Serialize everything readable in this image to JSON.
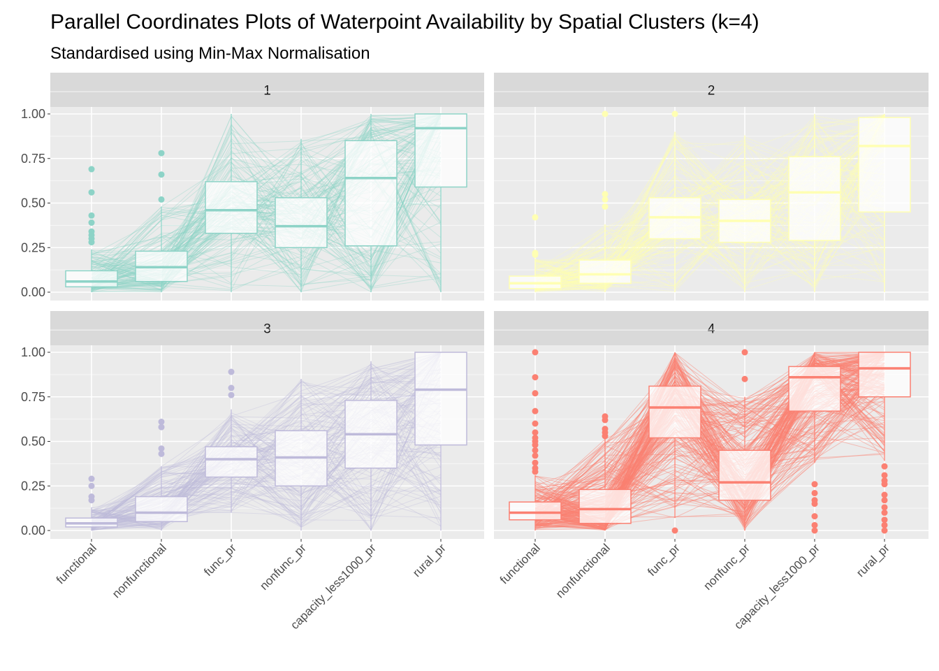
{
  "title": "Parallel Coordinates Plots of Waterpoint Availability by Spatial Clusters (k=4)",
  "subtitle": "Standardised using Min-Max Normalisation",
  "chart_data": {
    "type": "parallel_coordinates_with_boxplots",
    "facet_by": "cluster",
    "variables": [
      "functional",
      "nonfunctional",
      "func_pr",
      "nonfunc_pr",
      "capacity_less1000_pr",
      "rural_pr"
    ],
    "ylim": [
      0,
      1.2
    ],
    "yticks": [
      "0.00",
      "0.25",
      "0.50",
      "0.75",
      "1.00"
    ],
    "ytick_values": [
      0,
      0.25,
      0.5,
      0.75,
      1.0
    ],
    "grid": true,
    "facets": [
      {
        "label": "1",
        "color": "#8DD3C7",
        "boxes": [
          {
            "q1": 0.03,
            "median": 0.06,
            "q3": 0.12,
            "low": 0.0,
            "high": 0.24,
            "outliers": [
              0.28,
              0.3,
              0.32,
              0.34,
              0.39,
              0.43,
              0.56,
              0.69
            ]
          },
          {
            "q1": 0.06,
            "median": 0.14,
            "q3": 0.23,
            "low": 0.0,
            "high": 0.48,
            "outliers": [
              0.52,
              0.66,
              0.78
            ]
          },
          {
            "q1": 0.33,
            "median": 0.46,
            "q3": 0.62,
            "low": 0.0,
            "high": 1.0,
            "outliers": []
          },
          {
            "q1": 0.25,
            "median": 0.37,
            "q3": 0.53,
            "low": 0.0,
            "high": 0.86,
            "outliers": []
          },
          {
            "q1": 0.26,
            "median": 0.64,
            "q3": 0.85,
            "low": 0.0,
            "high": 1.0,
            "outliers": []
          },
          {
            "q1": 0.59,
            "median": 0.92,
            "q3": 1.0,
            "low": 0.0,
            "high": 1.0,
            "outliers": []
          }
        ]
      },
      {
        "label": "2",
        "color": "#FFFFB3",
        "boxes": [
          {
            "q1": 0.02,
            "median": 0.05,
            "q3": 0.09,
            "low": 0.0,
            "high": 0.19,
            "outliers": [
              0.21,
              0.22,
              0.42
            ]
          },
          {
            "q1": 0.05,
            "median": 0.1,
            "q3": 0.18,
            "low": 0.0,
            "high": 0.38,
            "outliers": [
              0.48,
              0.52,
              0.55,
              1.0
            ]
          },
          {
            "q1": 0.3,
            "median": 0.42,
            "q3": 0.53,
            "low": 0.0,
            "high": 0.9,
            "outliers": [
              1.0
            ]
          },
          {
            "q1": 0.28,
            "median": 0.4,
            "q3": 0.52,
            "low": 0.0,
            "high": 0.88,
            "outliers": []
          },
          {
            "q1": 0.29,
            "median": 0.56,
            "q3": 0.76,
            "low": 0.0,
            "high": 1.0,
            "outliers": []
          },
          {
            "q1": 0.45,
            "median": 0.82,
            "q3": 0.98,
            "low": 0.0,
            "high": 1.0,
            "outliers": []
          }
        ]
      },
      {
        "label": "3",
        "color": "#BEBADA",
        "boxes": [
          {
            "q1": 0.02,
            "median": 0.04,
            "q3": 0.07,
            "low": 0.0,
            "high": 0.13,
            "outliers": [
              0.17,
              0.19,
              0.25,
              0.29
            ]
          },
          {
            "q1": 0.05,
            "median": 0.1,
            "q3": 0.19,
            "low": 0.0,
            "high": 0.36,
            "outliers": [
              0.43,
              0.46,
              0.58,
              0.61
            ]
          },
          {
            "q1": 0.3,
            "median": 0.4,
            "q3": 0.47,
            "low": 0.1,
            "high": 0.68,
            "outliers": [
              0.76,
              0.8,
              0.89
            ]
          },
          {
            "q1": 0.25,
            "median": 0.41,
            "q3": 0.56,
            "low": 0.0,
            "high": 0.85,
            "outliers": []
          },
          {
            "q1": 0.35,
            "median": 0.54,
            "q3": 0.73,
            "low": 0.0,
            "high": 0.95,
            "outliers": []
          },
          {
            "q1": 0.48,
            "median": 0.79,
            "q3": 1.0,
            "low": 0.0,
            "high": 1.0,
            "outliers": []
          }
        ]
      },
      {
        "label": "4",
        "color": "#FB8072",
        "boxes": [
          {
            "q1": 0.06,
            "median": 0.1,
            "q3": 0.16,
            "low": 0.0,
            "high": 0.31,
            "outliers": [
              0.33,
              0.35,
              0.38,
              0.42,
              0.45,
              0.48,
              0.5,
              0.52,
              0.55,
              0.6,
              0.67,
              0.77,
              0.86,
              1.0
            ]
          },
          {
            "q1": 0.04,
            "median": 0.12,
            "q3": 0.23,
            "low": 0.0,
            "high": 0.52,
            "outliers": [
              0.53,
              0.55,
              0.57,
              0.62,
              0.64
            ]
          },
          {
            "q1": 0.52,
            "median": 0.69,
            "q3": 0.81,
            "low": 0.07,
            "high": 1.0,
            "outliers": [
              0.0
            ]
          },
          {
            "q1": 0.17,
            "median": 0.27,
            "q3": 0.45,
            "low": 0.0,
            "high": 0.75,
            "outliers": [
              0.85,
              1.0
            ]
          },
          {
            "q1": 0.67,
            "median": 0.86,
            "q3": 0.92,
            "low": 0.38,
            "high": 1.0,
            "outliers": [
              0.0,
              0.03,
              0.08,
              0.15,
              0.17,
              0.21,
              0.26
            ]
          },
          {
            "q1": 0.75,
            "median": 0.91,
            "q3": 1.0,
            "low": 0.39,
            "high": 1.0,
            "outliers": [
              0.0,
              0.03,
              0.06,
              0.1,
              0.13,
              0.17,
              0.2,
              0.26,
              0.28,
              0.31,
              0.36
            ]
          }
        ]
      }
    ]
  }
}
